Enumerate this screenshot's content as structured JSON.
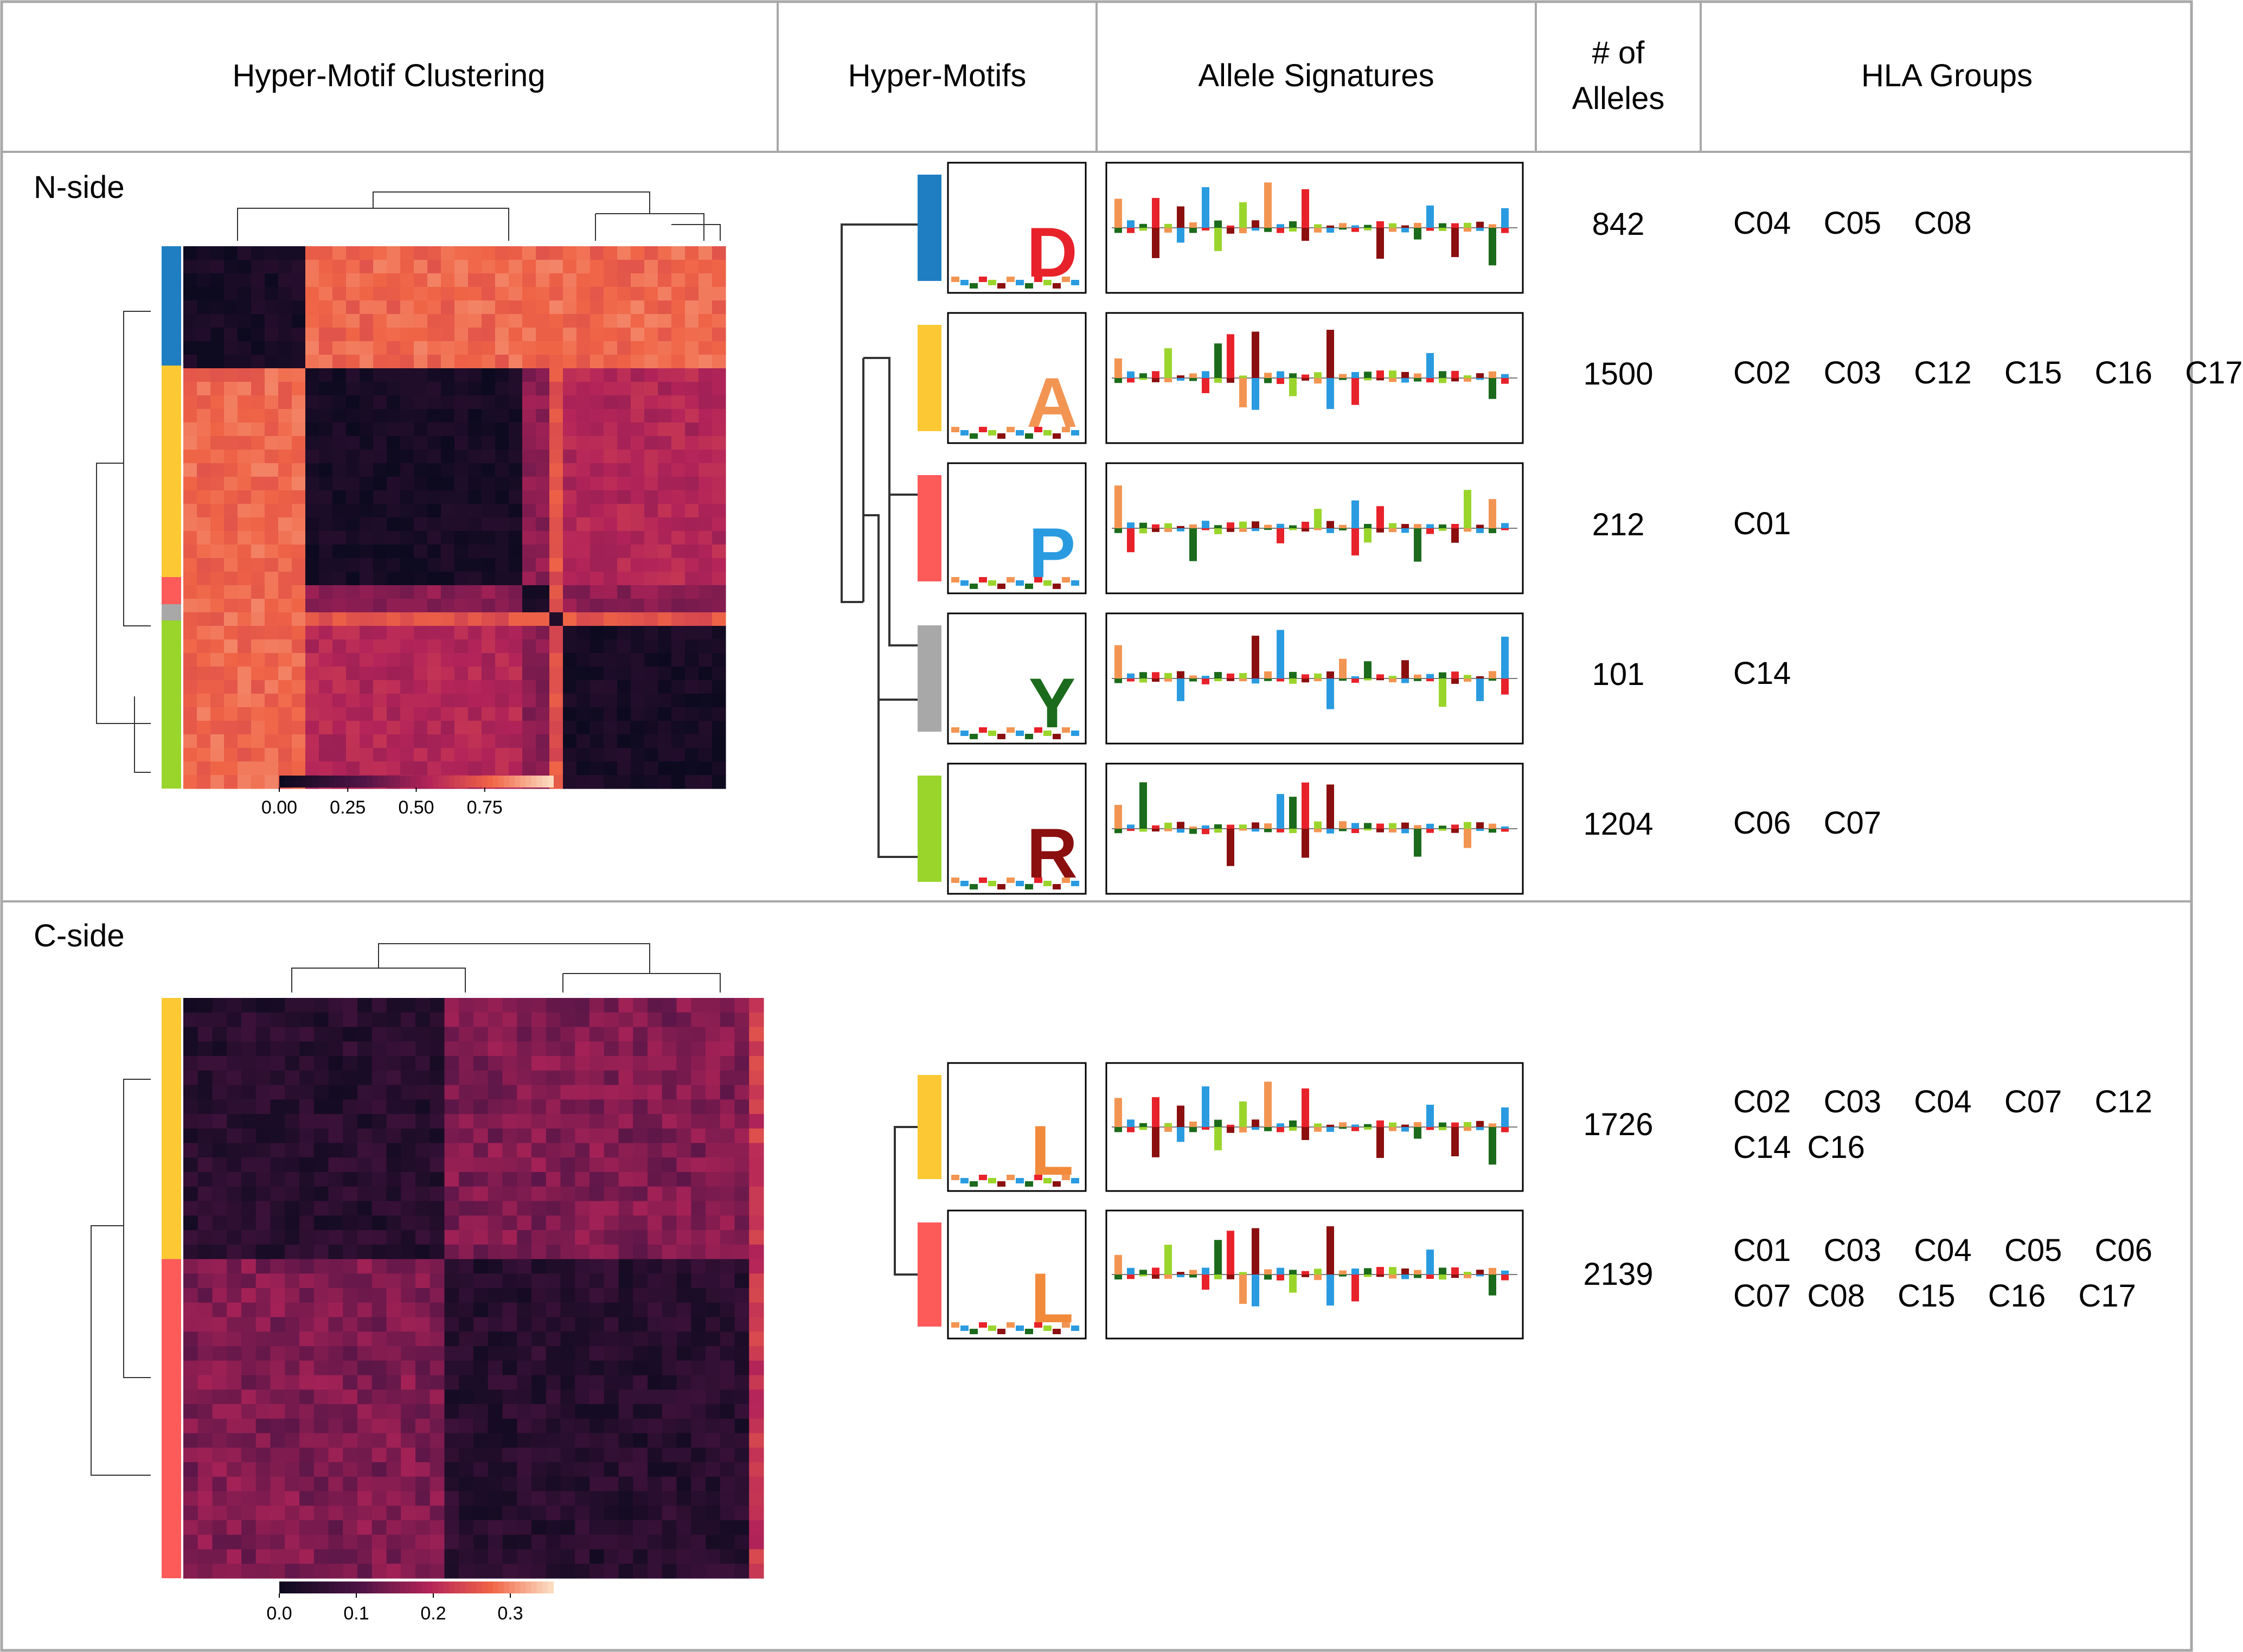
{
  "headers": {
    "clustering": "Hyper-Motif Clustering",
    "hyper_motifs": "Hyper-Motifs",
    "allele_signatures": "Allele Signatures",
    "num_alleles": "# of\nAlleles",
    "hla_groups": "HLA Groups"
  },
  "sections": [
    {
      "label": "N-side",
      "colorbar_ticks": [
        "0.00",
        "0.25",
        "0.50",
        "0.75"
      ],
      "clusters": [
        {
          "color": "#1f7ec1",
          "count": "842",
          "groups": "C04  C05  C08",
          "motif_letter": "D",
          "motif_color": "#e8222a"
        },
        {
          "color": "#fcc934",
          "count": "1500",
          "groups": "C02  C03  C12  C15  C16  C17",
          "motif_letter": "A",
          "motif_color": "#f29553"
        },
        {
          "color": "#fd5a5a",
          "count": "212",
          "groups": "C01",
          "motif_letter": "P",
          "motif_color": "#2a9be0"
        },
        {
          "color": "#a8a8a8",
          "count": "101",
          "groups": "C14",
          "motif_letter": "Y",
          "motif_color": "#1c6b1c"
        },
        {
          "color": "#9ad52c",
          "count": "1204",
          "groups": "C06  C07",
          "motif_letter": "R",
          "motif_color": "#8b0f0f"
        }
      ]
    },
    {
      "label": "C-side",
      "colorbar_ticks": [
        "0.0",
        "0.1",
        "0.2",
        "0.3"
      ],
      "clusters": [
        {
          "color": "#fcc934",
          "count": "1726",
          "groups": "C02  C03  C04  C07  C12  C14 C16",
          "motif_letter": "L",
          "motif_color": "#f28a3c"
        },
        {
          "color": "#fd5a5a",
          "count": "2139",
          "groups": "C01  C03  C04  C05  C06  C07 C08  C15  C16  C17",
          "motif_letter": "L",
          "motif_color": "#f28a3c"
        }
      ]
    }
  ],
  "colors": {
    "border": "#a8a8a8",
    "heat_dark": "#0d0a1f",
    "heat_mid": "#b52459",
    "heat_light": "#fbd3b0"
  }
}
